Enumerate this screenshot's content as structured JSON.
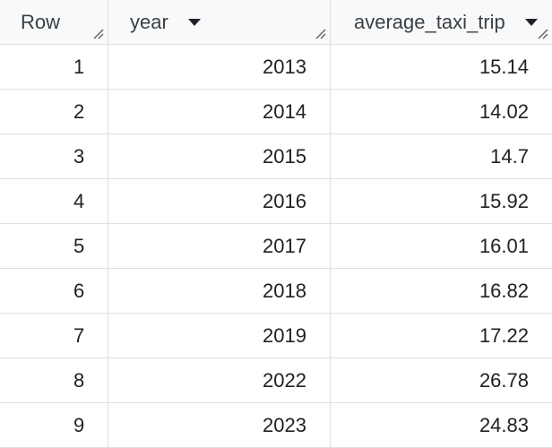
{
  "columns": [
    {
      "label": "Row",
      "sortable": false
    },
    {
      "label": "year",
      "sortable": true
    },
    {
      "label": "average_taxi_trip",
      "sortable": true
    }
  ],
  "rows": [
    {
      "row": "1",
      "year": "2013",
      "average_taxi_trip": "15.14"
    },
    {
      "row": "2",
      "year": "2014",
      "average_taxi_trip": "14.02"
    },
    {
      "row": "3",
      "year": "2015",
      "average_taxi_trip": "14.7"
    },
    {
      "row": "4",
      "year": "2016",
      "average_taxi_trip": "15.92"
    },
    {
      "row": "5",
      "year": "2017",
      "average_taxi_trip": "16.01"
    },
    {
      "row": "6",
      "year": "2018",
      "average_taxi_trip": "16.82"
    },
    {
      "row": "7",
      "year": "2019",
      "average_taxi_trip": "17.22"
    },
    {
      "row": "8",
      "year": "2022",
      "average_taxi_trip": "26.78"
    },
    {
      "row": "9",
      "year": "2023",
      "average_taxi_trip": "24.83"
    }
  ],
  "icons": {
    "sort": "sort-down-icon",
    "resize": "column-resize-icon"
  },
  "colors": {
    "header_bg": "#f8f9fa",
    "border": "#e0e0e0",
    "text": "#202124"
  }
}
